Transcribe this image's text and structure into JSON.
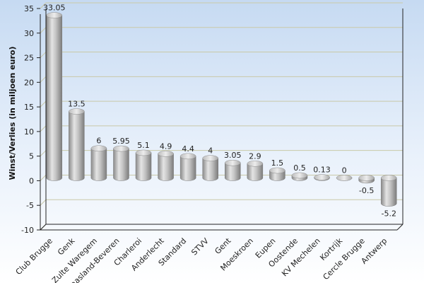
{
  "chart_data": {
    "type": "bar",
    "ylabel": "Winst/Verlies (in miljoen euro)",
    "ylim": [
      -10,
      35
    ],
    "yticks": [
      -10,
      -5,
      0,
      5,
      10,
      15,
      20,
      25,
      30,
      35
    ],
    "categories": [
      "Club Brugge",
      "Genk",
      "Zulte Waregem",
      "Waasland-Beveren",
      "Charleroi",
      "Anderlecht",
      "Standard",
      "STVV",
      "Gent",
      "Moeskroen",
      "Eupen",
      "Oostende",
      "KV Mechelen",
      "Kortrijk",
      "Cercle Brugge",
      "Antwerp"
    ],
    "values": [
      33.05,
      13.5,
      6,
      5.95,
      5.1,
      4.9,
      4.4,
      4,
      3.05,
      2.9,
      1.5,
      0.5,
      0.13,
      0,
      -0.5,
      -5.2
    ],
    "value_labels": [
      "33.05",
      "13.5",
      "6",
      "5.95",
      "5.1",
      "4.9",
      "4.4",
      "4",
      "3.05",
      "2.9",
      "1.5",
      "0.5",
      "0.13",
      "0",
      "-0.5",
      "-5.2"
    ],
    "grid": true,
    "legend": "none",
    "colors": {
      "bar_light": "#e4e4e4",
      "bar_mid": "#b4b4b4",
      "bar_dark": "#8a8a8a",
      "grid": "#c9c9a8",
      "axis": "#222222"
    }
  }
}
